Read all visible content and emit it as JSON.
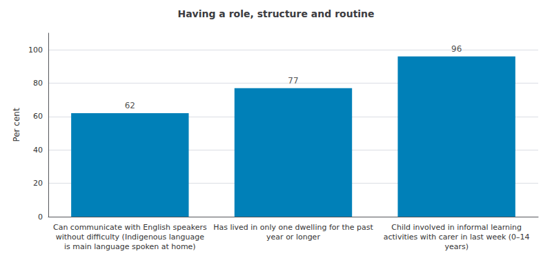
{
  "chart_data": {
    "type": "bar",
    "title": "Having a role, structure and routine",
    "ylabel": "Per cent",
    "categories": [
      "Can communicate with English speakers\nwithout difficulty (Indigenous language\nis main language spoken at home)",
      "Has lived in only one dwelling for the past\nyear or longer",
      "Child involved in informal learning\nactivities with carer in last week (0–14\nyears)"
    ],
    "values": [
      62,
      77,
      96
    ],
    "color": "#0080B8",
    "ylim": [
      0,
      110
    ],
    "yticks": [
      0,
      20,
      40,
      60,
      80,
      100
    ],
    "grid": true,
    "data_labels": true
  }
}
